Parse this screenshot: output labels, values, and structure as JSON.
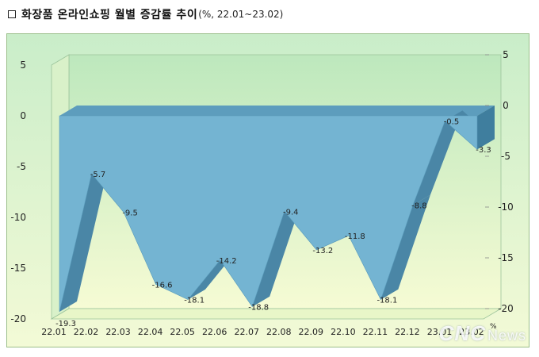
{
  "header": {
    "box_icon": "square-outline-icon",
    "title": "화장품 온라인쇼핑 월별 증감률 추이",
    "subtitle": "(%, 22.01~23.02)"
  },
  "chart_data": {
    "type": "area",
    "categories": [
      "22.01",
      "22.02",
      "22.03",
      "22.04",
      "22.05",
      "22.06",
      "22.07",
      "22.08",
      "22.09",
      "22.10",
      "22.11",
      "22.12",
      "23.01",
      "23.02"
    ],
    "values": [
      -19.3,
      -5.7,
      -9.5,
      -16.6,
      -18.1,
      -14.2,
      -18.8,
      -9.4,
      -13.2,
      -11.8,
      -18.1,
      -8.8,
      -0.5,
      -3.3
    ],
    "value_labels": [
      "-19.3",
      "-5.7",
      "-9.5",
      "-16.6",
      "-18.1",
      "-14.2",
      "-18.8",
      "-9.4",
      "-13.2",
      "-11.8",
      "-18.1",
      "-8.8",
      "-0.5",
      "-3.3"
    ],
    "ylim": [
      -20,
      5
    ],
    "yticks": [
      "5",
      "0",
      "-5",
      "-10",
      "-15",
      "-20"
    ],
    "ytick_values": [
      5,
      0,
      -5,
      -10,
      -15,
      -20
    ],
    "unit_label": "%",
    "grid": false,
    "legend": "none",
    "colors": {
      "area": "#74b4d2",
      "area_dark": "#3f7e9e",
      "wall_top": "#bfe9bf",
      "wall_bottom": "#f4fbd2"
    }
  },
  "watermark": {
    "brand": "CNC",
    "suffix": "News"
  }
}
